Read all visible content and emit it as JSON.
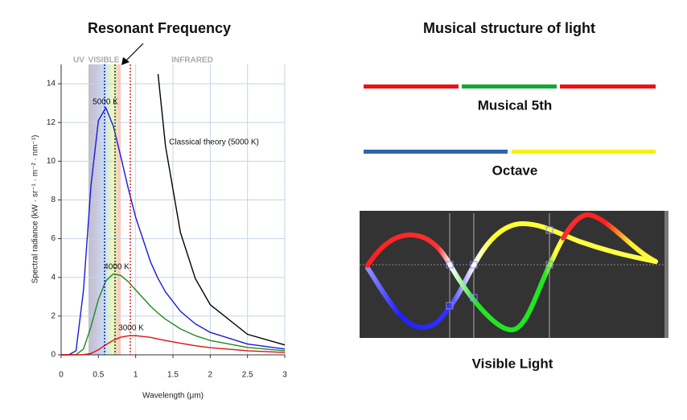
{
  "chart_data": {
    "type": "line",
    "title": "Resonant Frequency",
    "xlabel": "Wavelength (μm)",
    "ylabel": "Spectral radiance (kW · sr⁻¹ · m⁻² · nm⁻¹)",
    "region_labels": [
      "UV",
      "VISIBLE",
      "INFRARED"
    ],
    "x": [
      0,
      0.1,
      0.2,
      0.3,
      0.4,
      0.5,
      0.6,
      0.7,
      0.8,
      0.9,
      1.0,
      1.2,
      1.3,
      1.4,
      1.6,
      1.8,
      2.0,
      2.5,
      3.0
    ],
    "series": [
      {
        "name": "5000 K",
        "color": "#1a1ad8",
        "values": [
          0,
          0,
          0.21,
          3.34,
          8.74,
          12.1,
          12.76,
          11.81,
          10.24,
          8.6,
          7.1,
          4.79,
          3.94,
          3.25,
          2.25,
          1.6,
          1.16,
          0.56,
          0.3
        ]
      },
      {
        "name": "4000 K",
        "color": "#1f8a1f",
        "values": [
          0,
          0,
          0.01,
          0.3,
          1.45,
          2.86,
          3.82,
          4.18,
          4.1,
          3.78,
          3.35,
          2.51,
          2.15,
          1.84,
          1.34,
          0.99,
          0.74,
          0.38,
          0.21
        ]
      },
      {
        "name": "3000 K",
        "color": "#e01010",
        "values": [
          0,
          0,
          0,
          0.01,
          0.07,
          0.26,
          0.52,
          0.75,
          0.91,
          0.98,
          0.99,
          0.9,
          0.82,
          0.74,
          0.6,
          0.47,
          0.37,
          0.21,
          0.12
        ]
      },
      {
        "name": "Classical theory (5000 K)",
        "color": "#000000",
        "values": [
          null,
          null,
          null,
          null,
          null,
          null,
          null,
          null,
          null,
          null,
          null,
          null,
          14.5,
          10.78,
          6.32,
          3.94,
          2.59,
          1.06,
          0.51
        ]
      }
    ],
    "xlim": [
      0,
      3
    ],
    "xticks": [
      0,
      0.5,
      1,
      1.5,
      2,
      2.5,
      3
    ],
    "ylim": [
      0,
      15
    ],
    "yticks": [
      0,
      2,
      4,
      6,
      8,
      10,
      12,
      14
    ],
    "grid": true
  },
  "diagram": {
    "title": "Musical structure of light",
    "items": [
      {
        "label": "Musical 5th"
      },
      {
        "label": "Octave"
      },
      {
        "label": "Visible Light"
      }
    ]
  }
}
